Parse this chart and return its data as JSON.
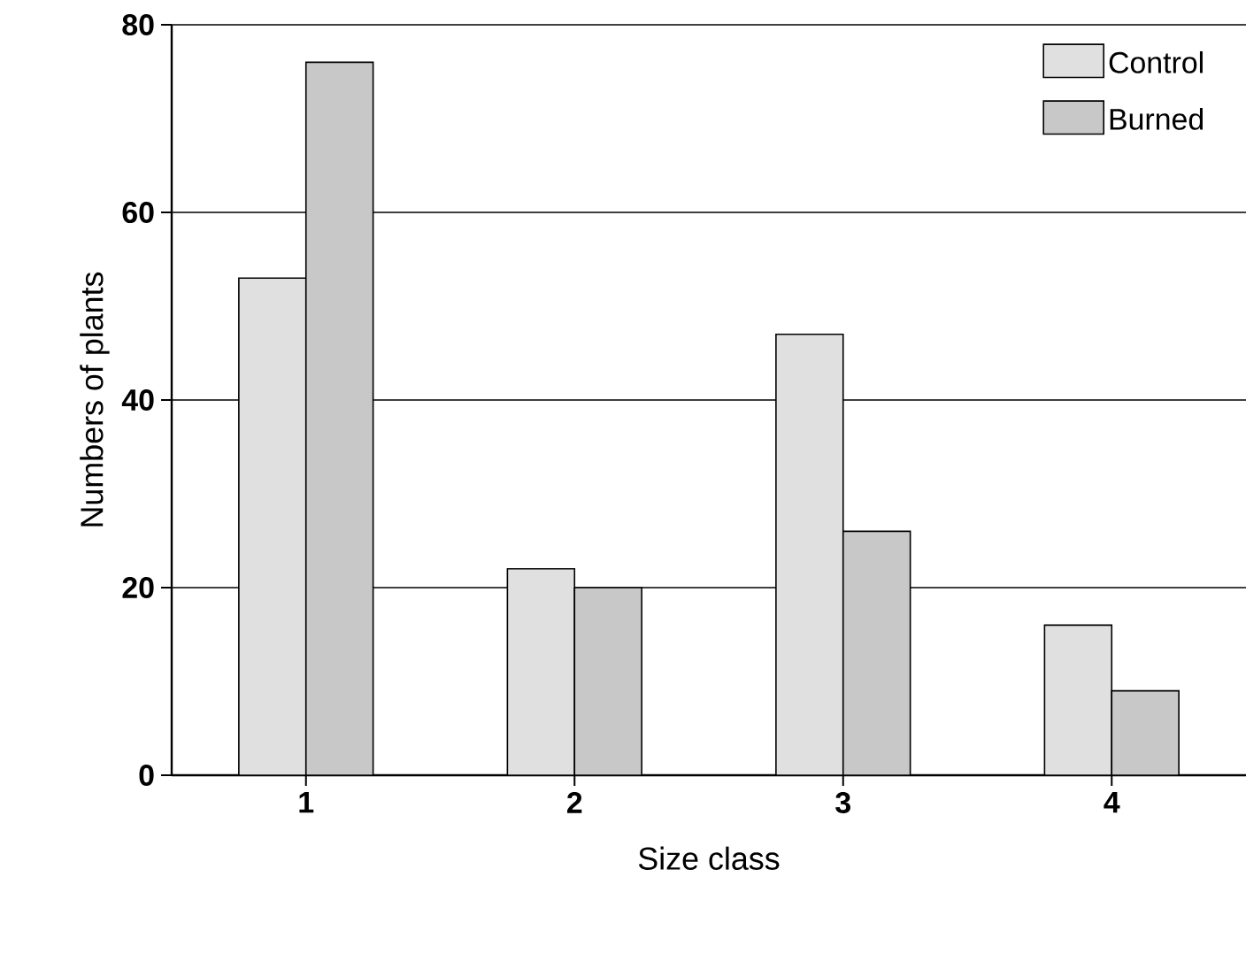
{
  "chart_data": {
    "type": "bar",
    "xlabel": "Size class",
    "ylabel": "Numbers of plants",
    "categories": [
      "1",
      "2",
      "3",
      "4"
    ],
    "series": [
      {
        "name": "Control",
        "color": "#e0e0e0",
        "values": [
          53,
          22,
          47,
          16
        ]
      },
      {
        "name": "Burned",
        "color": "#c8c8c8",
        "values": [
          76,
          20,
          26,
          9
        ]
      }
    ],
    "ylim": [
      0,
      80
    ],
    "yticks": [
      0,
      20,
      40,
      60,
      80
    ],
    "grid": "y",
    "legend": "top right"
  }
}
